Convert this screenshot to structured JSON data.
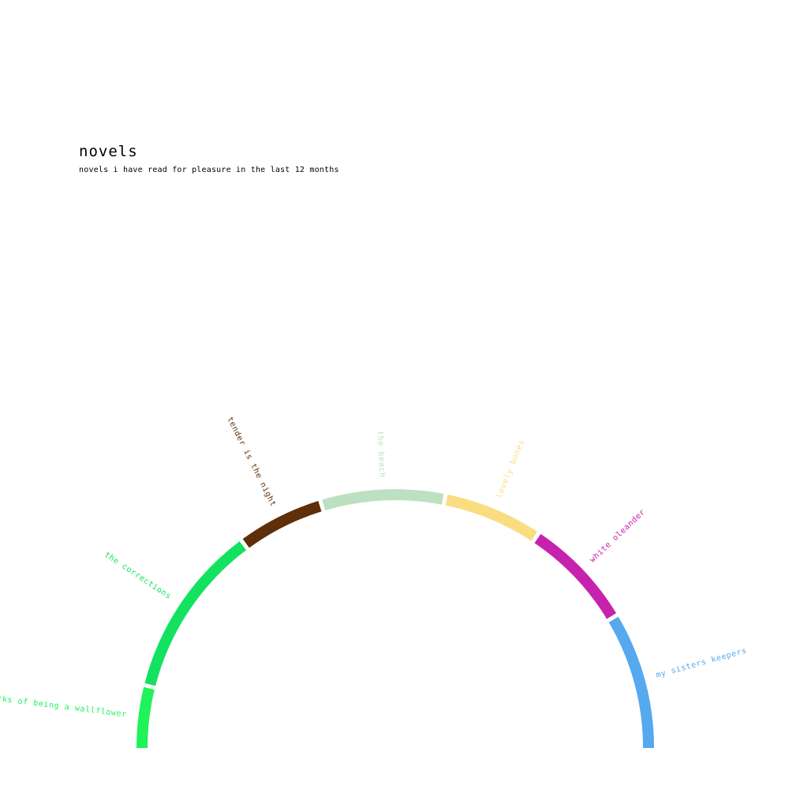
{
  "header": {
    "title": "novels",
    "subtitle": "novels i have read for pleasure in the last  12 months"
  },
  "chart_data": {
    "type": "arc",
    "title": "novels",
    "subtitle": "novels i have read for pleasure in the last  12 months",
    "segments": [
      {
        "label": "perks of being a wallflower",
        "value": 25,
        "color": "#1ef35a"
      },
      {
        "label": "the corrections",
        "value": 70,
        "color": "#12e260"
      },
      {
        "label": "tender is the night",
        "value": 35,
        "color": "#5e2f08"
      },
      {
        "label": "the beach",
        "value": 50,
        "color": "#bde1c0"
      },
      {
        "label": "lovely bones",
        "value": 40,
        "color": "#fadd80"
      },
      {
        "label": "white oleander",
        "value": 45,
        "color": "#c722ae"
      },
      {
        "label": "my sisters keepers",
        "value": 55,
        "color": "#56a8ef"
      }
    ]
  }
}
